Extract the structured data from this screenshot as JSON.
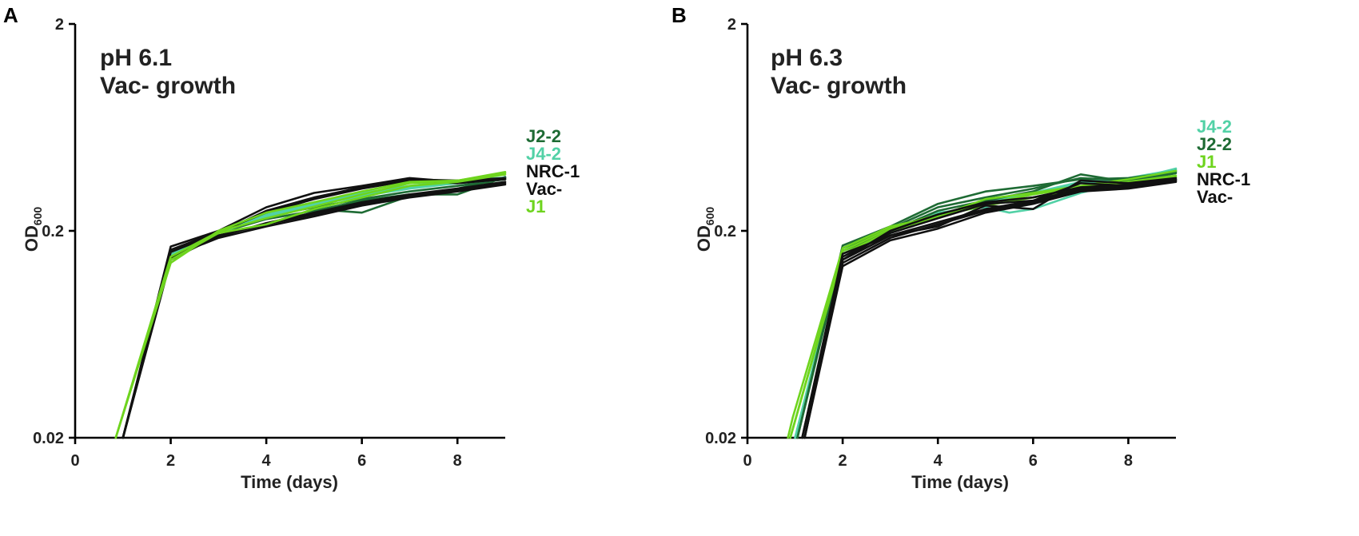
{
  "colors": {
    "J2-2": "#1e6b34",
    "J4-2": "#52d1a6",
    "NRC-1": "#111111",
    "Vac-": "#111111",
    "J1": "#6ed41e"
  },
  "chart_data": [
    {
      "panel": "A",
      "type": "line",
      "title": [
        "pH 6.1",
        "Vac- growth"
      ],
      "xlabel": "Time (days)",
      "ylabel": {
        "main": "OD",
        "sub": "600"
      },
      "yscale": "log",
      "xlim": [
        0,
        9
      ],
      "ylim": [
        0.02,
        2
      ],
      "xticks": [
        0,
        2,
        4,
        6,
        8
      ],
      "yticks": [
        0.02,
        0.2,
        2
      ],
      "yticklabels": [
        "0.02",
        "0.2",
        "2"
      ],
      "legend": [
        {
          "name": "J2-2",
          "color": "#1e6b34"
        },
        {
          "name": "J4-2",
          "color": "#52d1a6"
        },
        {
          "name": "NRC-1",
          "color": "#111111"
        },
        {
          "name": "Vac-",
          "color": "#111111"
        },
        {
          "name": "J1",
          "color": "#6ed41e"
        }
      ],
      "series": [
        {
          "name": "J2-2",
          "color": "#1e6b34",
          "x": [
            1,
            2,
            3,
            4,
            5,
            6,
            7,
            8,
            9
          ],
          "y": [
            0.02,
            0.155,
            0.19,
            0.215,
            0.255,
            0.245,
            0.295,
            0.32,
            0.36
          ]
        },
        {
          "name": "J2-2",
          "color": "#1e6b34",
          "x": [
            1,
            2,
            3,
            4,
            5,
            6,
            7,
            8,
            9
          ],
          "y": [
            0.02,
            0.16,
            0.2,
            0.235,
            0.26,
            0.285,
            0.31,
            0.33,
            0.355
          ]
        },
        {
          "name": "J2-2",
          "color": "#1e6b34",
          "x": [
            1,
            2,
            3,
            4,
            5,
            6,
            7,
            8,
            8.5,
            9
          ],
          "y": [
            0.02,
            0.158,
            0.195,
            0.228,
            0.25,
            0.28,
            0.3,
            0.3,
            0.33,
            0.365
          ]
        },
        {
          "name": "J4-2",
          "color": "#52d1a6",
          "x": [
            1,
            2,
            3,
            4,
            5,
            6,
            7,
            8,
            9
          ],
          "y": [
            0.02,
            0.152,
            0.198,
            0.24,
            0.27,
            0.3,
            0.325,
            0.345,
            0.36
          ]
        },
        {
          "name": "J4-2",
          "color": "#52d1a6",
          "x": [
            1,
            2,
            3,
            4,
            5,
            6,
            7,
            8,
            9
          ],
          "y": [
            0.02,
            0.148,
            0.195,
            0.235,
            0.265,
            0.295,
            0.32,
            0.34,
            0.355
          ]
        },
        {
          "name": "J4-2",
          "color": "#52d1a6",
          "x": [
            1,
            2,
            3,
            4,
            5,
            6,
            7,
            8,
            9
          ],
          "y": [
            0.02,
            0.156,
            0.2,
            0.245,
            0.275,
            0.305,
            0.33,
            0.35,
            0.362
          ]
        },
        {
          "name": "NRC-1",
          "color": "#111111",
          "x": [
            1,
            2,
            3,
            4,
            5,
            6,
            7,
            8,
            9
          ],
          "y": [
            0.02,
            0.168,
            0.2,
            0.26,
            0.305,
            0.33,
            0.36,
            0.345,
            0.36
          ]
        },
        {
          "name": "NRC-1",
          "color": "#111111",
          "x": [
            1,
            2,
            3,
            4,
            5,
            6,
            7,
            8,
            9
          ],
          "y": [
            0.02,
            0.162,
            0.198,
            0.245,
            0.285,
            0.32,
            0.35,
            0.34,
            0.355
          ]
        },
        {
          "name": "NRC-1",
          "color": "#111111",
          "x": [
            1,
            2,
            3,
            4,
            5,
            6,
            7,
            8,
            9
          ],
          "y": [
            0.02,
            0.158,
            0.195,
            0.25,
            0.29,
            0.325,
            0.355,
            0.35,
            0.36
          ]
        },
        {
          "name": "Vac-",
          "color": "#111111",
          "x": [
            1,
            2,
            3,
            4,
            5,
            6,
            7,
            8,
            9
          ],
          "y": [
            0.02,
            0.15,
            0.185,
            0.21,
            0.235,
            0.265,
            0.29,
            0.31,
            0.335
          ]
        },
        {
          "name": "Vac-",
          "color": "#111111",
          "x": [
            1,
            2,
            3,
            4,
            5,
            6,
            7,
            8,
            9
          ],
          "y": [
            0.02,
            0.145,
            0.19,
            0.215,
            0.24,
            0.27,
            0.295,
            0.315,
            0.34
          ]
        },
        {
          "name": "Vac-",
          "color": "#111111",
          "x": [
            1,
            2,
            3,
            4,
            5,
            6,
            7,
            8,
            9
          ],
          "y": [
            0.02,
            0.148,
            0.188,
            0.218,
            0.245,
            0.275,
            0.3,
            0.32,
            0.345
          ]
        },
        {
          "name": "J1",
          "color": "#6ed41e",
          "x": [
            0.85,
            2,
            3,
            4,
            5,
            6,
            7,
            8,
            9
          ],
          "y": [
            0.02,
            0.14,
            0.2,
            0.245,
            0.275,
            0.31,
            0.345,
            0.35,
            0.385
          ]
        },
        {
          "name": "J1",
          "color": "#6ed41e",
          "x": [
            0.85,
            2,
            3,
            4,
            5,
            6,
            7,
            8,
            9
          ],
          "y": [
            0.02,
            0.145,
            0.195,
            0.215,
            0.255,
            0.29,
            0.33,
            0.345,
            0.375
          ]
        },
        {
          "name": "J1",
          "color": "#6ed41e",
          "x": [
            0.85,
            2,
            3,
            4,
            5,
            6,
            7,
            8,
            9
          ],
          "y": [
            0.02,
            0.15,
            0.198,
            0.23,
            0.262,
            0.3,
            0.34,
            0.35,
            0.38
          ]
        }
      ]
    },
    {
      "panel": "B",
      "type": "line",
      "title": [
        "pH 6.3",
        "Vac- growth"
      ],
      "xlabel": "Time (days)",
      "ylabel": {
        "main": "OD",
        "sub": "600"
      },
      "yscale": "log",
      "xlim": [
        0,
        9
      ],
      "ylim": [
        0.02,
        2
      ],
      "xticks": [
        0,
        2,
        4,
        6,
        8
      ],
      "yticks": [
        0.02,
        0.2,
        2
      ],
      "yticklabels": [
        "0.02",
        "0.2",
        "2"
      ],
      "legend": [
        {
          "name": "J4-2",
          "color": "#52d1a6"
        },
        {
          "name": "J2-2",
          "color": "#1e6b34"
        },
        {
          "name": "J1",
          "color": "#6ed41e"
        },
        {
          "name": "NRC-1",
          "color": "#111111"
        },
        {
          "name": "Vac-",
          "color": "#111111"
        }
      ],
      "series": [
        {
          "name": "J4-2",
          "color": "#52d1a6",
          "x": [
            1,
            2,
            3,
            4,
            5,
            5.5,
            6,
            7,
            8,
            9
          ],
          "y": [
            0.02,
            0.165,
            0.2,
            0.245,
            0.26,
            0.245,
            0.255,
            0.305,
            0.35,
            0.4
          ]
        },
        {
          "name": "J4-2",
          "color": "#52d1a6",
          "x": [
            1,
            2,
            3,
            4,
            5,
            6,
            7,
            8,
            9
          ],
          "y": [
            0.02,
            0.155,
            0.195,
            0.235,
            0.27,
            0.3,
            0.34,
            0.355,
            0.39
          ]
        },
        {
          "name": "J4-2",
          "color": "#52d1a6",
          "x": [
            1,
            2,
            3,
            4,
            5,
            6,
            7,
            8,
            9
          ],
          "y": [
            0.02,
            0.16,
            0.198,
            0.24,
            0.275,
            0.305,
            0.345,
            0.36,
            0.395
          ]
        },
        {
          "name": "J2-2",
          "color": "#1e6b34",
          "x": [
            1.05,
            2,
            3,
            4,
            5,
            6,
            7,
            8,
            9
          ],
          "y": [
            0.02,
            0.17,
            0.21,
            0.27,
            0.31,
            0.33,
            0.355,
            0.36,
            0.385
          ]
        },
        {
          "name": "J2-2",
          "color": "#1e6b34",
          "x": [
            1.05,
            2,
            3,
            4,
            5,
            6,
            7,
            8,
            9
          ],
          "y": [
            0.02,
            0.16,
            0.2,
            0.25,
            0.28,
            0.31,
            0.375,
            0.345,
            0.38
          ]
        },
        {
          "name": "J2-2",
          "color": "#1e6b34",
          "x": [
            1.05,
            2,
            3,
            4,
            5,
            6,
            7,
            8,
            9
          ],
          "y": [
            0.02,
            0.165,
            0.205,
            0.26,
            0.29,
            0.32,
            0.36,
            0.35,
            0.39
          ]
        },
        {
          "name": "J1",
          "color": "#6ed41e",
          "x": [
            0.85,
            0.95,
            2,
            3,
            4,
            5,
            6,
            7,
            8,
            9
          ],
          "y": [
            0.02,
            0.025,
            0.165,
            0.21,
            0.235,
            0.285,
            0.305,
            0.33,
            0.355,
            0.39
          ]
        },
        {
          "name": "J1",
          "color": "#6ed41e",
          "x": [
            0.9,
            2,
            3,
            4,
            5,
            6,
            7,
            8,
            9
          ],
          "y": [
            0.02,
            0.16,
            0.205,
            0.24,
            0.27,
            0.3,
            0.325,
            0.345,
            0.37
          ]
        },
        {
          "name": "J1",
          "color": "#6ed41e",
          "x": [
            0.9,
            2,
            3,
            4,
            5,
            6,
            7,
            8,
            9
          ],
          "y": [
            0.02,
            0.155,
            0.2,
            0.235,
            0.265,
            0.29,
            0.32,
            0.34,
            0.365
          ]
        },
        {
          "name": "NRC-1",
          "color": "#111111",
          "x": [
            1.15,
            2,
            3,
            4,
            5,
            6,
            7,
            8,
            9
          ],
          "y": [
            0.02,
            0.155,
            0.19,
            0.21,
            0.265,
            0.255,
            0.35,
            0.34,
            0.36
          ]
        },
        {
          "name": "NRC-1",
          "color": "#111111",
          "x": [
            1.15,
            2,
            3,
            4,
            5,
            6,
            7,
            8,
            9
          ],
          "y": [
            0.02,
            0.145,
            0.2,
            0.24,
            0.275,
            0.29,
            0.325,
            0.335,
            0.355
          ]
        },
        {
          "name": "NRC-1",
          "color": "#111111",
          "x": [
            1.15,
            2,
            3,
            4,
            5,
            6,
            7,
            8,
            9
          ],
          "y": [
            0.02,
            0.15,
            0.195,
            0.23,
            0.27,
            0.28,
            0.34,
            0.33,
            0.35
          ]
        },
        {
          "name": "Vac-",
          "color": "#111111",
          "x": [
            1.2,
            2,
            3,
            4,
            5,
            6,
            7,
            8,
            9
          ],
          "y": [
            0.02,
            0.135,
            0.18,
            0.205,
            0.245,
            0.27,
            0.31,
            0.32,
            0.345
          ]
        },
        {
          "name": "Vac-",
          "color": "#111111",
          "x": [
            1.2,
            2,
            3,
            4,
            5,
            6,
            7,
            8,
            9
          ],
          "y": [
            0.02,
            0.14,
            0.185,
            0.215,
            0.25,
            0.275,
            0.315,
            0.325,
            0.35
          ]
        },
        {
          "name": "Vac-",
          "color": "#111111",
          "x": [
            1.2,
            2,
            3,
            4,
            5,
            6,
            7,
            8,
            9
          ],
          "y": [
            0.02,
            0.145,
            0.19,
            0.22,
            0.255,
            0.28,
            0.32,
            0.33,
            0.355
          ]
        }
      ]
    }
  ]
}
